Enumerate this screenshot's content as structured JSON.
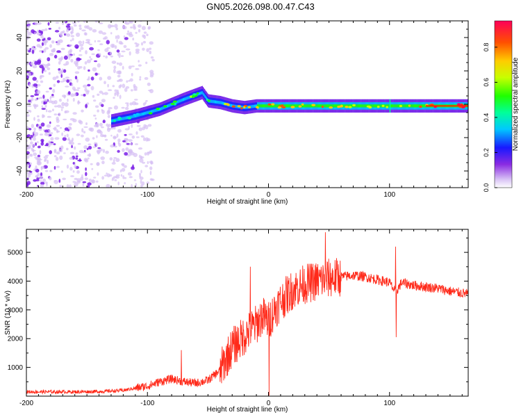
{
  "page": {
    "title": "GN05.2026.098.00.47.C43"
  },
  "colors": {
    "snr_line": "#ff2a1a",
    "axis": "#000000",
    "spectrogram_low": "#d9c6f5",
    "spectrogram_mid": "#6a12e6",
    "spectrogram_high": "#ff0000"
  },
  "chart_data": [
    {
      "type": "heatmap",
      "name": "spectrogram",
      "title": "GN05.2026.098.00.47.C43",
      "xlabel": "Height of straight line (km)",
      "ylabel": "Frequency (Hz)",
      "xlim": [
        -200,
        165
      ],
      "ylim": [
        -50,
        50
      ],
      "x_ticks": [
        -200,
        -100,
        0,
        100
      ],
      "x_tick_labels": [
        "-200",
        "-100",
        "0",
        "100"
      ],
      "y_ticks": [
        -40,
        -20,
        0,
        20,
        40
      ],
      "y_tick_labels": [
        "-40",
        "-20",
        "0",
        "20",
        "40"
      ],
      "ridge": {
        "x": [
          -130,
          -110,
          -90,
          -70,
          -55,
          -50,
          -40,
          -30,
          -20,
          -10,
          0,
          20,
          50,
          100,
          165
        ],
        "frequency": [
          -10,
          -7,
          -3,
          3,
          7,
          2,
          1,
          -1,
          -2,
          -1,
          -1,
          -1,
          -1,
          -1,
          -1
        ],
        "amplitude": [
          0.3,
          0.35,
          0.4,
          0.45,
          0.5,
          0.5,
          0.5,
          0.75,
          0.7,
          0.7,
          0.75,
          0.7,
          0.65,
          0.6,
          0.9
        ]
      },
      "noise_region_x": [
        -200,
        -110
      ],
      "colorbar": {
        "label": "Normalized spectral amplitude",
        "min": 0.0,
        "max": 0.95,
        "ticks": [
          0.0,
          0.2,
          0.4,
          0.6,
          0.8
        ],
        "tick_labels": [
          "0.0",
          "0.2",
          "0.4",
          "0.6",
          "0.8"
        ]
      }
    },
    {
      "type": "line",
      "name": "snr",
      "xlabel": "Height of straight line (km)",
      "ylabel": "SNR (10 * v/v)",
      "xlim": [
        -200,
        165
      ],
      "ylim": [
        0,
        5800
      ],
      "x_ticks": [
        -200,
        -100,
        0,
        100
      ],
      "x_tick_labels": [
        "-200",
        "-100",
        "0",
        "100"
      ],
      "y_ticks": [
        1000,
        2000,
        3000,
        4000,
        5000
      ],
      "y_tick_labels": [
        "1000",
        "2000",
        "3000",
        "4000",
        "5000"
      ],
      "series": [
        {
          "name": "SNR",
          "x": [
            -200,
            -180,
            -160,
            -140,
            -120,
            -110,
            -100,
            -90,
            -80,
            -70,
            -60,
            -50,
            -40,
            -35,
            -30,
            -25,
            -20,
            -15,
            -10,
            -5,
            0,
            5,
            10,
            20,
            30,
            40,
            50,
            60,
            70,
            80,
            90,
            100,
            105,
            110,
            120,
            130,
            140,
            150,
            165
          ],
          "values": [
            150,
            150,
            150,
            160,
            200,
            280,
            350,
            500,
            600,
            500,
            450,
            550,
            900,
            1300,
            1700,
            1900,
            2100,
            2300,
            2500,
            2800,
            2600,
            3000,
            3300,
            3700,
            3900,
            4000,
            4100,
            4150,
            4200,
            4150,
            4050,
            3950,
            3600,
            3950,
            3850,
            3800,
            3750,
            3650,
            3550
          ],
          "spikes": [
            {
              "x": -72,
              "value": 1600
            },
            {
              "x": -15,
              "value": 4500
            },
            {
              "x": 47,
              "value": 5700
            },
            {
              "x": 105,
              "value": 5200
            },
            {
              "x": 105.5,
              "value": 2050
            },
            {
              "x": 0.5,
              "value": 20
            }
          ]
        }
      ]
    }
  ]
}
